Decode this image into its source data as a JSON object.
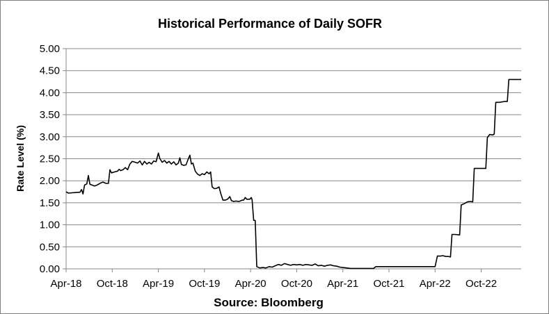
{
  "chart_data": {
    "type": "line",
    "title": "Historical Performance of Daily SOFR",
    "ylabel": "Rate Level (%)",
    "xlabel": "Source: Bloomberg",
    "ylim": [
      0,
      5
    ],
    "yticks": [
      "0.00",
      "0.50",
      "1.00",
      "1.50",
      "2.00",
      "2.50",
      "3.00",
      "3.50",
      "4.00",
      "4.50",
      "5.00"
    ],
    "xticks": [
      {
        "label": "Apr-18",
        "month": 0
      },
      {
        "label": "Oct-18",
        "month": 6
      },
      {
        "label": "Apr-19",
        "month": 12
      },
      {
        "label": "Oct-19",
        "month": 18
      },
      {
        "label": "Apr-20",
        "month": 24
      },
      {
        "label": "Oct-20",
        "month": 30
      },
      {
        "label": "Apr-21",
        "month": 36
      },
      {
        "label": "Oct-21",
        "month": 42
      },
      {
        "label": "Apr-22",
        "month": 48
      },
      {
        "label": "Oct-22",
        "month": 54
      }
    ],
    "xlim_months": [
      0,
      59.2
    ],
    "grid": true,
    "legend": "none",
    "series": [
      {
        "color": "#000000",
        "points": [
          [
            0.0,
            1.75
          ],
          [
            0.3,
            1.72
          ],
          [
            1.0,
            1.73
          ],
          [
            1.8,
            1.74
          ],
          [
            2.0,
            1.8
          ],
          [
            2.2,
            1.7
          ],
          [
            2.4,
            1.9
          ],
          [
            2.7,
            1.93
          ],
          [
            2.9,
            2.12
          ],
          [
            3.1,
            1.92
          ],
          [
            3.4,
            1.9
          ],
          [
            3.7,
            1.88
          ],
          [
            4.0,
            1.9
          ],
          [
            4.5,
            1.95
          ],
          [
            4.8,
            1.97
          ],
          [
            5.2,
            1.94
          ],
          [
            5.5,
            1.94
          ],
          [
            5.7,
            2.25
          ],
          [
            5.9,
            2.18
          ],
          [
            6.3,
            2.2
          ],
          [
            6.7,
            2.22
          ],
          [
            6.9,
            2.26
          ],
          [
            7.1,
            2.23
          ],
          [
            7.4,
            2.25
          ],
          [
            7.7,
            2.3
          ],
          [
            8.0,
            2.25
          ],
          [
            8.3,
            2.38
          ],
          [
            8.6,
            2.44
          ],
          [
            9.0,
            2.42
          ],
          [
            9.3,
            2.4
          ],
          [
            9.6,
            2.45
          ],
          [
            9.9,
            2.36
          ],
          [
            10.2,
            2.44
          ],
          [
            10.5,
            2.38
          ],
          [
            10.8,
            2.42
          ],
          [
            11.1,
            2.38
          ],
          [
            11.4,
            2.45
          ],
          [
            11.7,
            2.43
          ],
          [
            12.0,
            2.63
          ],
          [
            12.2,
            2.5
          ],
          [
            12.5,
            2.42
          ],
          [
            12.8,
            2.46
          ],
          [
            13.1,
            2.4
          ],
          [
            13.4,
            2.44
          ],
          [
            13.7,
            2.38
          ],
          [
            14.0,
            2.43
          ],
          [
            14.3,
            2.36
          ],
          [
            14.6,
            2.4
          ],
          [
            14.8,
            2.52
          ],
          [
            15.0,
            2.37
          ],
          [
            15.3,
            2.35
          ],
          [
            15.6,
            2.36
          ],
          [
            15.9,
            2.5
          ],
          [
            16.1,
            2.58
          ],
          [
            16.3,
            2.38
          ],
          [
            16.5,
            2.4
          ],
          [
            16.8,
            2.22
          ],
          [
            17.1,
            2.15
          ],
          [
            17.4,
            2.12
          ],
          [
            17.7,
            2.16
          ],
          [
            18.0,
            2.14
          ],
          [
            18.3,
            2.2
          ],
          [
            18.6,
            2.16
          ],
          [
            18.8,
            2.2
          ],
          [
            19.0,
            1.86
          ],
          [
            19.3,
            1.82
          ],
          [
            19.6,
            1.83
          ],
          [
            19.9,
            1.86
          ],
          [
            20.1,
            1.72
          ],
          [
            20.4,
            1.56
          ],
          [
            20.7,
            1.56
          ],
          [
            21.0,
            1.58
          ],
          [
            21.3,
            1.64
          ],
          [
            21.5,
            1.55
          ],
          [
            21.8,
            1.53
          ],
          [
            22.1,
            1.54
          ],
          [
            22.5,
            1.53
          ],
          [
            22.9,
            1.56
          ],
          [
            23.1,
            1.56
          ],
          [
            23.3,
            1.62
          ],
          [
            23.5,
            1.58
          ],
          [
            23.9,
            1.58
          ],
          [
            24.1,
            1.62
          ],
          [
            24.2,
            1.57
          ],
          [
            24.4,
            1.1
          ],
          [
            24.6,
            1.1
          ],
          [
            24.8,
            0.05
          ],
          [
            25.2,
            0.02
          ],
          [
            25.6,
            0.03
          ],
          [
            26.0,
            0.02
          ],
          [
            26.4,
            0.05
          ],
          [
            26.8,
            0.04
          ],
          [
            27.2,
            0.07
          ],
          [
            27.6,
            0.1
          ],
          [
            28.0,
            0.08
          ],
          [
            28.4,
            0.12
          ],
          [
            28.8,
            0.1
          ],
          [
            29.2,
            0.08
          ],
          [
            29.6,
            0.1
          ],
          [
            30.0,
            0.09
          ],
          [
            30.4,
            0.1
          ],
          [
            30.8,
            0.08
          ],
          [
            31.2,
            0.1
          ],
          [
            31.6,
            0.09
          ],
          [
            32.0,
            0.08
          ],
          [
            32.4,
            0.11
          ],
          [
            32.8,
            0.07
          ],
          [
            33.2,
            0.08
          ],
          [
            33.6,
            0.06
          ],
          [
            34.0,
            0.08
          ],
          [
            34.4,
            0.09
          ],
          [
            34.8,
            0.07
          ],
          [
            35.2,
            0.06
          ],
          [
            35.6,
            0.04
          ],
          [
            36.0,
            0.03
          ],
          [
            36.5,
            0.02
          ],
          [
            37.0,
            0.01
          ],
          [
            38.0,
            0.01
          ],
          [
            39.0,
            0.01
          ],
          [
            40.0,
            0.01
          ],
          [
            40.3,
            0.05
          ],
          [
            41.0,
            0.05
          ],
          [
            43.0,
            0.05
          ],
          [
            45.0,
            0.05
          ],
          [
            47.0,
            0.05
          ],
          [
            48.0,
            0.05
          ],
          [
            48.3,
            0.29
          ],
          [
            48.7,
            0.29
          ],
          [
            49.0,
            0.3
          ],
          [
            49.4,
            0.28
          ],
          [
            49.7,
            0.28
          ],
          [
            50.0,
            0.27
          ],
          [
            50.2,
            0.78
          ],
          [
            50.6,
            0.78
          ],
          [
            51.2,
            0.77
          ],
          [
            51.4,
            1.45
          ],
          [
            51.8,
            1.48
          ],
          [
            52.2,
            1.52
          ],
          [
            52.6,
            1.53
          ],
          [
            52.9,
            1.52
          ],
          [
            53.1,
            2.28
          ],
          [
            53.5,
            2.28
          ],
          [
            54.2,
            2.28
          ],
          [
            54.6,
            2.28
          ],
          [
            54.8,
            2.98
          ],
          [
            55.1,
            3.05
          ],
          [
            55.5,
            3.04
          ],
          [
            55.7,
            3.06
          ],
          [
            55.9,
            3.78
          ],
          [
            56.4,
            3.78
          ],
          [
            57.0,
            3.8
          ],
          [
            57.4,
            3.8
          ],
          [
            57.6,
            4.3
          ],
          [
            58.3,
            4.3
          ],
          [
            59.2,
            4.3
          ]
        ]
      }
    ]
  }
}
